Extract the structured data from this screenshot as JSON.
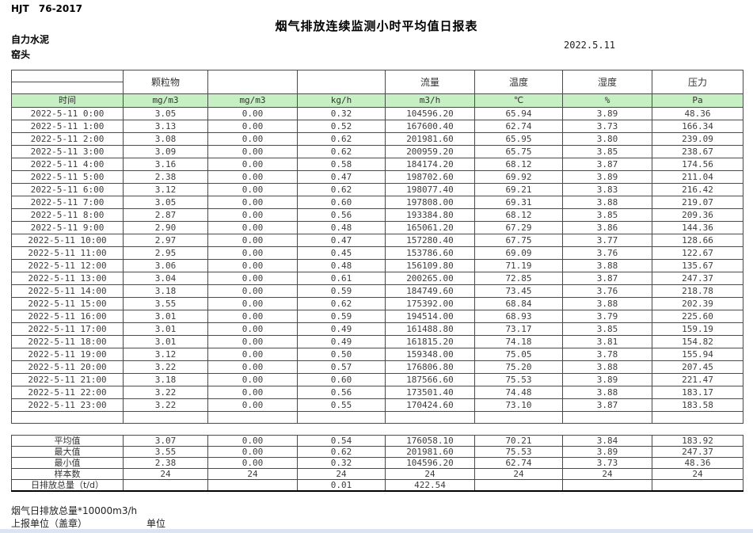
{
  "meta": {
    "standard_code": "HJT 76-2017",
    "title": "烟气排放连续监测小时平均值日报表",
    "company": "自力水泥",
    "monitor_point": "窑头",
    "date": "2022.5.11"
  },
  "colors": {
    "header_green": "#c6f0c3"
  },
  "table": {
    "pollutant_headers": [
      "",
      "颗粒物",
      "",
      "",
      "流量",
      "温度",
      "湿度",
      "压力"
    ],
    "unit_row": [
      "时间",
      "mg/m3",
      "mg/m3",
      "kg/h",
      "m3/h",
      "℃",
      "%",
      "Pa"
    ],
    "rows": [
      {
        "time": "2022-5-11 0:00",
        "values": [
          "3.05",
          "0.00",
          "0.32",
          "104596.20",
          "65.94",
          "3.89",
          "48.36"
        ]
      },
      {
        "time": "2022-5-11 1:00",
        "values": [
          "3.13",
          "0.00",
          "0.52",
          "167600.40",
          "62.74",
          "3.73",
          "166.34"
        ]
      },
      {
        "time": "2022-5-11 2:00",
        "values": [
          "3.08",
          "0.00",
          "0.62",
          "201981.60",
          "65.95",
          "3.80",
          "239.09"
        ]
      },
      {
        "time": "2022-5-11 3:00",
        "values": [
          "3.09",
          "0.00",
          "0.62",
          "200959.20",
          "65.75",
          "3.85",
          "238.67"
        ]
      },
      {
        "time": "2022-5-11 4:00",
        "values": [
          "3.16",
          "0.00",
          "0.58",
          "184174.20",
          "68.12",
          "3.87",
          "174.56"
        ]
      },
      {
        "time": "2022-5-11 5:00",
        "values": [
          "2.38",
          "0.00",
          "0.47",
          "198702.60",
          "69.92",
          "3.89",
          "211.04"
        ]
      },
      {
        "time": "2022-5-11 6:00",
        "values": [
          "3.12",
          "0.00",
          "0.62",
          "198077.40",
          "69.21",
          "3.83",
          "216.42"
        ]
      },
      {
        "time": "2022-5-11 7:00",
        "values": [
          "3.05",
          "0.00",
          "0.60",
          "197808.00",
          "69.31",
          "3.88",
          "219.07"
        ]
      },
      {
        "time": "2022-5-11 8:00",
        "values": [
          "2.87",
          "0.00",
          "0.56",
          "193384.80",
          "68.12",
          "3.85",
          "209.36"
        ]
      },
      {
        "time": "2022-5-11 9:00",
        "values": [
          "2.90",
          "0.00",
          "0.48",
          "165061.20",
          "67.29",
          "3.86",
          "144.36"
        ]
      },
      {
        "time": "2022-5-11 10:00",
        "values": [
          "2.97",
          "0.00",
          "0.47",
          "157280.40",
          "67.75",
          "3.77",
          "128.66"
        ]
      },
      {
        "time": "2022-5-11 11:00",
        "values": [
          "2.95",
          "0.00",
          "0.45",
          "153786.60",
          "69.09",
          "3.76",
          "122.67"
        ]
      },
      {
        "time": "2022-5-11 12:00",
        "values": [
          "3.06",
          "0.00",
          "0.48",
          "156109.80",
          "71.19",
          "3.88",
          "135.67"
        ]
      },
      {
        "time": "2022-5-11 13:00",
        "values": [
          "3.04",
          "0.00",
          "0.61",
          "200265.00",
          "72.85",
          "3.87",
          "247.37"
        ]
      },
      {
        "time": "2022-5-11 14:00",
        "values": [
          "3.18",
          "0.00",
          "0.59",
          "184749.60",
          "73.45",
          "3.76",
          "218.78"
        ]
      },
      {
        "time": "2022-5-11 15:00",
        "values": [
          "3.55",
          "0.00",
          "0.62",
          "175392.00",
          "68.84",
          "3.88",
          "202.39"
        ]
      },
      {
        "time": "2022-5-11 16:00",
        "values": [
          "3.01",
          "0.00",
          "0.59",
          "194514.00",
          "68.93",
          "3.79",
          "225.60"
        ]
      },
      {
        "time": "2022-5-11 17:00",
        "values": [
          "3.01",
          "0.00",
          "0.49",
          "161488.80",
          "73.17",
          "3.85",
          "159.19"
        ]
      },
      {
        "time": "2022-5-11 18:00",
        "values": [
          "3.01",
          "0.00",
          "0.49",
          "161815.20",
          "74.18",
          "3.81",
          "154.82"
        ]
      },
      {
        "time": "2022-5-11 19:00",
        "values": [
          "3.12",
          "0.00",
          "0.50",
          "159348.00",
          "75.05",
          "3.78",
          "155.94"
        ]
      },
      {
        "time": "2022-5-11 20:00",
        "values": [
          "3.22",
          "0.00",
          "0.57",
          "176806.80",
          "75.20",
          "3.88",
          "207.45"
        ]
      },
      {
        "time": "2022-5-11 21:00",
        "values": [
          "3.18",
          "0.00",
          "0.60",
          "187566.60",
          "75.53",
          "3.89",
          "221.47"
        ]
      },
      {
        "time": "2022-5-11 22:00",
        "values": [
          "3.22",
          "0.00",
          "0.56",
          "173501.40",
          "74.48",
          "3.88",
          "183.17"
        ]
      },
      {
        "time": "2022-5-11 23:00",
        "values": [
          "3.22",
          "0.00",
          "0.55",
          "170424.60",
          "73.10",
          "3.87",
          "183.58"
        ]
      }
    ],
    "summary": [
      {
        "label": "平均值",
        "values": [
          "3.07",
          "0.00",
          "0.54",
          "176058.10",
          "70.21",
          "3.84",
          "183.92"
        ]
      },
      {
        "label": "最大值",
        "values": [
          "3.55",
          "0.00",
          "0.62",
          "201981.60",
          "75.53",
          "3.89",
          "247.37"
        ]
      },
      {
        "label": "最小值",
        "values": [
          "2.38",
          "0.00",
          "0.32",
          "104596.20",
          "62.74",
          "3.73",
          "48.36"
        ]
      },
      {
        "label": "样本数",
        "values": [
          "24",
          "24",
          "24",
          "24",
          "24",
          "24",
          "24"
        ]
      },
      {
        "label": "日排放总量（t/d）",
        "values": [
          "",
          "",
          "0.01",
          "422.54",
          "",
          "",
          ""
        ]
      }
    ]
  },
  "footer": {
    "note": "烟气日排放总量*10000m3/h",
    "report_label": "上报单位（盖章）",
    "unit_label": "单位"
  }
}
